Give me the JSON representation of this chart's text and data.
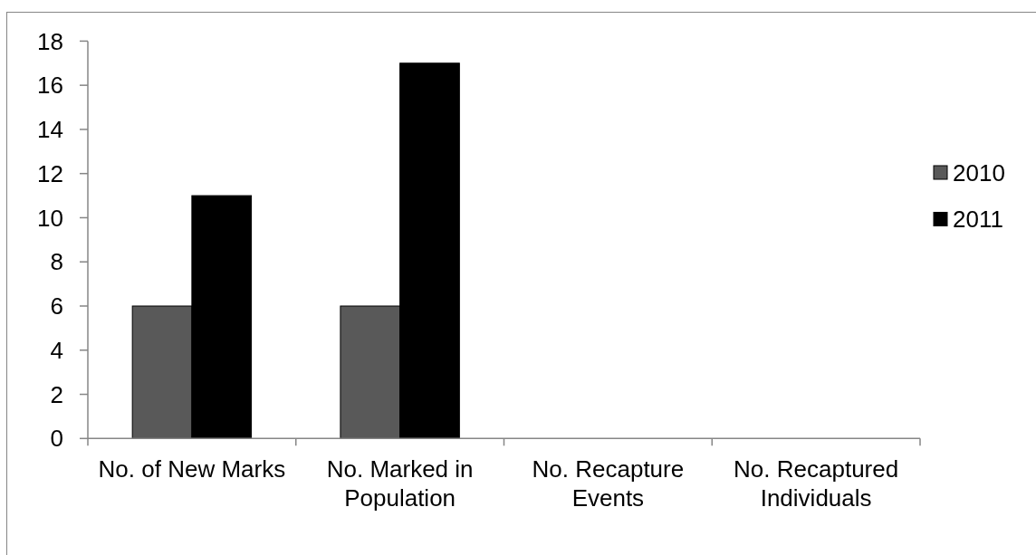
{
  "chart_data": {
    "type": "bar",
    "categories": [
      "No. of New Marks",
      "No. Marked in Population",
      "No. Recapture Events",
      "No. Recaptured Individuals"
    ],
    "series": [
      {
        "name": "2010",
        "color": "#595959",
        "values": [
          6,
          6,
          0,
          0
        ]
      },
      {
        "name": "2011",
        "color": "#000000",
        "values": [
          11,
          17,
          0,
          0
        ]
      }
    ],
    "ylim": [
      0,
      18
    ],
    "yticks": [
      0,
      2,
      4,
      6,
      8,
      10,
      12,
      14,
      16,
      18
    ],
    "legend": "right"
  }
}
